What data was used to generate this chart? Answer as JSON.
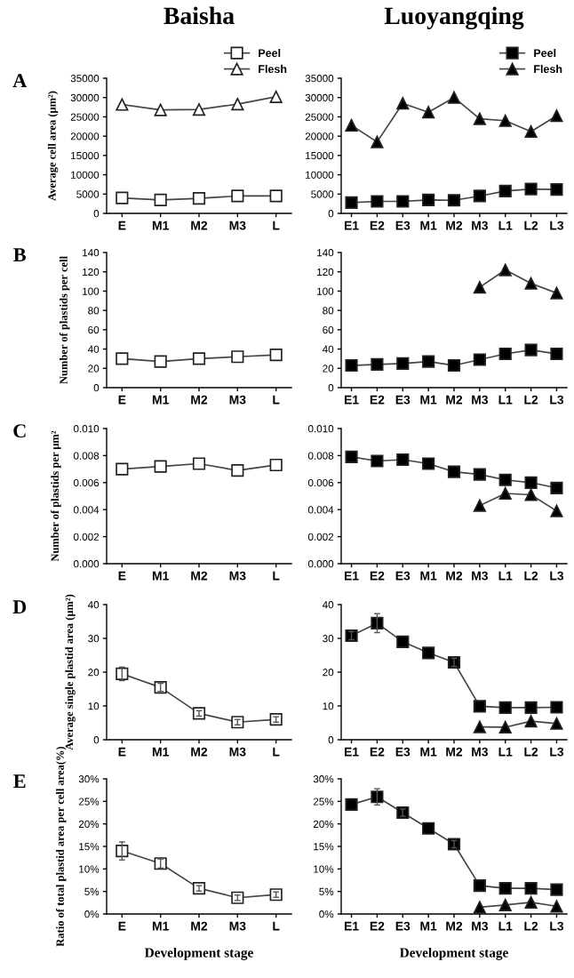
{
  "chart_data": [
    {
      "type": "line",
      "title": "Baisha",
      "ylabel": "Average cell area (μm²)",
      "annotations": [
        "A"
      ],
      "categories": [
        "E",
        "M1",
        "M2",
        "M3",
        "L"
      ],
      "ylim": [
        0,
        35000
      ],
      "yticks": [
        0,
        5000,
        10000,
        15000,
        20000,
        25000,
        30000,
        35000
      ],
      "legend": "top right",
      "series": [
        {
          "name": "Peel",
          "color": "#ffffff",
          "marker": "square",
          "values": [
            4000,
            3500,
            3900,
            4500,
            4500
          ]
        },
        {
          "name": "Flesh",
          "color": "#ffffff",
          "marker": "triangle",
          "values": [
            28200,
            26800,
            26900,
            28300,
            30200
          ]
        }
      ]
    },
    {
      "type": "line",
      "title": "Luoyangqing",
      "categories": [
        "E1",
        "E2",
        "E3",
        "M1",
        "M2",
        "M3",
        "L1",
        "L2",
        "L3"
      ],
      "ylim": [
        0,
        35000
      ],
      "yticks": [
        0,
        5000,
        10000,
        15000,
        20000,
        25000,
        30000,
        35000
      ],
      "legend": "top right",
      "series": [
        {
          "name": "Peel",
          "color": "#000000",
          "marker": "square",
          "values": [
            2800,
            3100,
            3100,
            3500,
            3400,
            4500,
            5800,
            6300,
            6200
          ]
        },
        {
          "name": "Flesh",
          "color": "#000000",
          "marker": "triangle",
          "values": [
            22800,
            18500,
            28500,
            26200,
            30000,
            24500,
            24000,
            21200,
            25300
          ]
        }
      ]
    },
    {
      "type": "line",
      "ylabel": "Number of plastids per cell",
      "annotations": [
        "B"
      ],
      "categories": [
        "E",
        "M1",
        "M2",
        "M3",
        "L"
      ],
      "ylim": [
        0,
        140
      ],
      "yticks": [
        0,
        20,
        40,
        60,
        80,
        100,
        120,
        140
      ],
      "series": [
        {
          "color": "#ffffff",
          "marker": "square",
          "values": [
            30,
            27,
            30,
            32,
            34
          ]
        }
      ]
    },
    {
      "type": "line",
      "categories": [
        "E1",
        "E2",
        "E3",
        "M1",
        "M2",
        "M3",
        "L1",
        "L2",
        "L3"
      ],
      "ylim": [
        0,
        140
      ],
      "yticks": [
        0,
        20,
        40,
        60,
        80,
        100,
        120,
        140
      ],
      "series": [
        {
          "color": "#000000",
          "marker": "square",
          "values": [
            23,
            24,
            25,
            27,
            23,
            29,
            35,
            39,
            35
          ]
        },
        {
          "color": "#000000",
          "marker": "triangle",
          "values": [
            null,
            null,
            null,
            null,
            null,
            104,
            122,
            108,
            98
          ]
        }
      ]
    },
    {
      "type": "line",
      "ylabel": "Number of plastids per μm²",
      "annotations": [
        "C"
      ],
      "categories": [
        "E",
        "M1",
        "M2",
        "M3",
        "L"
      ],
      "ylim": [
        0,
        0.01
      ],
      "yticks": [
        {
          "value": 0,
          "label": "0.000"
        },
        {
          "value": 0.002,
          "label": "0.002"
        },
        {
          "value": 0.004,
          "label": "0.004"
        },
        {
          "value": 0.006,
          "label": "0.006"
        },
        {
          "value": 0.008,
          "label": "0.008"
        },
        {
          "value": 0.01,
          "label": "0.010"
        }
      ],
      "series": [
        {
          "color": "#ffffff",
          "marker": "square",
          "values": [
            0.007,
            0.0072,
            0.0074,
            0.0069,
            0.0073
          ]
        }
      ]
    },
    {
      "type": "line",
      "categories": [
        "E1",
        "E2",
        "E3",
        "M1",
        "M2",
        "M3",
        "L1",
        "L2",
        "L3"
      ],
      "ylim": [
        0,
        0.01
      ],
      "yticks": [
        {
          "value": 0,
          "label": "0.000"
        },
        {
          "value": 0.002,
          "label": "0.002"
        },
        {
          "value": 0.004,
          "label": "0.004"
        },
        {
          "value": 0.006,
          "label": "0.006"
        },
        {
          "value": 0.008,
          "label": "0.008"
        },
        {
          "value": 0.01,
          "label": "0.010"
        }
      ],
      "series": [
        {
          "color": "#000000",
          "marker": "square",
          "values": [
            0.0079,
            0.0076,
            0.0077,
            0.0074,
            0.0068,
            0.0066,
            0.0062,
            0.006,
            0.0056
          ]
        },
        {
          "color": "#000000",
          "marker": "triangle",
          "values": [
            null,
            null,
            null,
            null,
            null,
            0.0043,
            0.0052,
            0.0051,
            0.0039
          ]
        }
      ]
    },
    {
      "type": "line",
      "ylabel": "Average single plastid area (μm²)",
      "annotations": [
        "D"
      ],
      "categories": [
        "E",
        "M1",
        "M2",
        "M3",
        "L"
      ],
      "ylim": [
        0,
        40
      ],
      "yticks": [
        0,
        10,
        20,
        30,
        40
      ],
      "series": [
        {
          "color": "#ffffff",
          "marker": "square",
          "values": [
            19.5,
            15.5,
            7.8,
            5.2,
            6.0
          ],
          "errors": [
            2,
            1.2,
            0.8,
            0.8,
            0.8
          ]
        }
      ]
    },
    {
      "type": "line",
      "categories": [
        "E1",
        "E2",
        "E3",
        "M1",
        "M2",
        "M3",
        "L1",
        "L2",
        "L3"
      ],
      "ylim": [
        0,
        40
      ],
      "yticks": [
        0,
        10,
        20,
        30,
        40
      ],
      "series": [
        {
          "color": "#000000",
          "marker": "square",
          "values": [
            30.8,
            34.5,
            29,
            25.7,
            22.9,
            9.9,
            9.5,
            9.5,
            9.6
          ],
          "errors": [
            1.2,
            2.8,
            null,
            null,
            1.2,
            null,
            null,
            null,
            null
          ]
        },
        {
          "color": "#000000",
          "marker": "triangle",
          "values": [
            null,
            null,
            null,
            null,
            null,
            3.8,
            3.7,
            5.5,
            4.8
          ]
        }
      ]
    },
    {
      "type": "line",
      "ylabel": "Ratio of total plastid area per cell area(%)",
      "xlabel": "Development stage",
      "annotations": [
        "E"
      ],
      "categories": [
        "E",
        "M1",
        "M2",
        "M3",
        "L"
      ],
      "ylim": [
        0,
        30
      ],
      "yticks": [
        {
          "value": 0,
          "label": "0%"
        },
        {
          "value": 5,
          "label": "5%"
        },
        {
          "value": 10,
          "label": "10%"
        },
        {
          "value": 15,
          "label": "15%"
        },
        {
          "value": 20,
          "label": "20%"
        },
        {
          "value": 25,
          "label": "25%"
        },
        {
          "value": 30,
          "label": "30%"
        }
      ],
      "series": [
        {
          "color": "#ffffff",
          "marker": "square",
          "values": [
            14,
            11.2,
            5.7,
            3.6,
            4.3
          ],
          "errors": [
            2,
            1,
            0.6,
            0.6,
            0.6
          ]
        }
      ]
    },
    {
      "type": "line",
      "xlabel": "Development stage",
      "categories": [
        "E1",
        "E2",
        "E3",
        "M1",
        "M2",
        "M3",
        "L1",
        "L2",
        "L3"
      ],
      "ylim": [
        0,
        30
      ],
      "yticks": [
        {
          "value": 0,
          "label": "0%"
        },
        {
          "value": 5,
          "label": "5%"
        },
        {
          "value": 10,
          "label": "10%"
        },
        {
          "value": 15,
          "label": "15%"
        },
        {
          "value": 20,
          "label": "20%"
        },
        {
          "value": 25,
          "label": "25%"
        },
        {
          "value": 30,
          "label": "30%"
        }
      ],
      "series": [
        {
          "color": "#000000",
          "marker": "square",
          "values": [
            24.3,
            26,
            22.5,
            19,
            15.5,
            6.3,
            5.7,
            5.7,
            5.4
          ],
          "errors": [
            null,
            1.8,
            0.8,
            null,
            0.8,
            null,
            null,
            null,
            null
          ]
        },
        {
          "color": "#000000",
          "marker": "triangle",
          "values": [
            null,
            null,
            null,
            null,
            null,
            1.5,
            2,
            2.6,
            1.7
          ]
        }
      ]
    }
  ]
}
